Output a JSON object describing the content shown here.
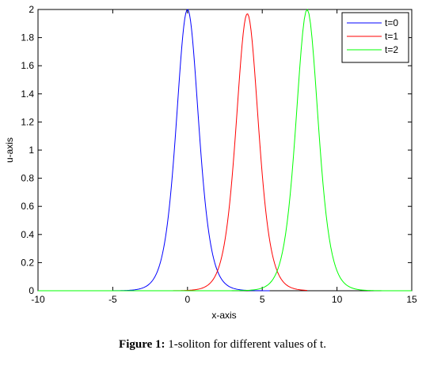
{
  "chart_data": {
    "type": "line",
    "xlabel": "x-axis",
    "ylabel": "u-axis",
    "xlim": [
      -10,
      15
    ],
    "ylim": [
      0,
      2
    ],
    "xticks": [
      -10,
      -5,
      0,
      5,
      10,
      15
    ],
    "yticks": [
      0,
      0.2,
      0.4,
      0.6,
      0.8,
      1,
      1.2,
      1.4,
      1.6,
      1.8,
      2
    ],
    "grid": false,
    "legend_position": "top-right",
    "series": [
      {
        "name": "t=0",
        "color": "#0000ff",
        "peak": 2,
        "center": 0,
        "x_range": [
          -10,
          5.5
        ]
      },
      {
        "name": "t=1",
        "color": "#ff0000",
        "peak": 1.97,
        "center": 4,
        "x_range": [
          -10,
          8
        ]
      },
      {
        "name": "t=2",
        "color": "#00ff00",
        "peak": 2,
        "center": 8,
        "x_range": [
          -10,
          15
        ]
      }
    ]
  },
  "caption": {
    "label": "Figure 1:",
    "text": " 1-soliton for different values of t."
  }
}
